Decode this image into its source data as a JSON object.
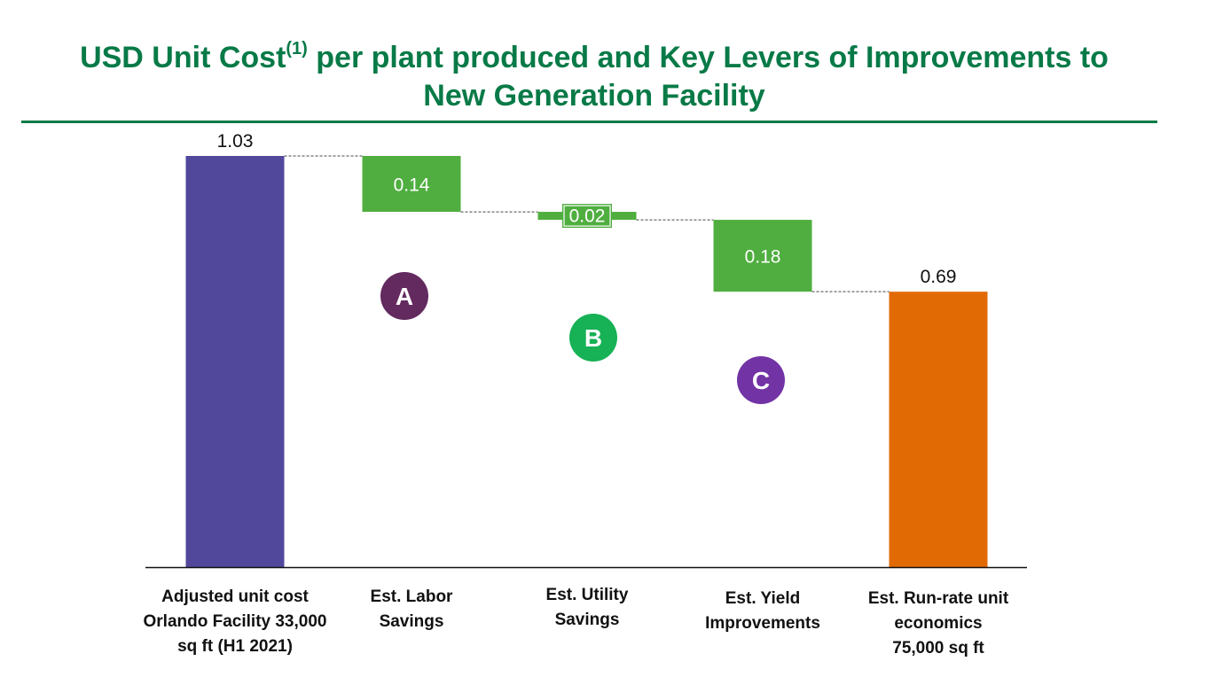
{
  "title": {
    "before_sup": "USD Unit Cost",
    "sup": "(1)",
    "after_sup": " per plant produced and Key Levers of Improvements to",
    "line2": "New Generation Facility"
  },
  "colors": {
    "title_green": "#087a47",
    "start_bar": "#51479b",
    "decrease_bar": "#4fae3f",
    "end_bar": "#e26a05",
    "badge_a": "#632a5f",
    "badge_b": "#17b156",
    "badge_c": "#7233a5"
  },
  "chart_data": {
    "type": "waterfall",
    "title": "USD Unit Cost(1) per plant produced and Key Levers of Improvements to New Generation Facility",
    "categories": [
      "Adjusted unit cost\nOrlando Facility 33,000\nsq ft  (H1 2021)",
      "Est. Labor\nSavings",
      "Est. Utility\nSavings",
      "Est. Yield\nImprovements",
      "Est. Run-rate unit\neconomics\n75,000 sq ft"
    ],
    "steps": [
      {
        "kind": "total",
        "value": 1.03,
        "label": "1.03"
      },
      {
        "kind": "decrease",
        "value": 0.14,
        "label": "0.14",
        "badge": "A"
      },
      {
        "kind": "decrease",
        "value": 0.02,
        "label": "0.02",
        "badge": "B"
      },
      {
        "kind": "decrease",
        "value": 0.18,
        "label": "0.18",
        "badge": "C"
      },
      {
        "kind": "total",
        "value": 0.69,
        "label": "0.69"
      }
    ],
    "ylim": [
      0,
      1.03
    ],
    "grid": false,
    "connectors": true
  }
}
